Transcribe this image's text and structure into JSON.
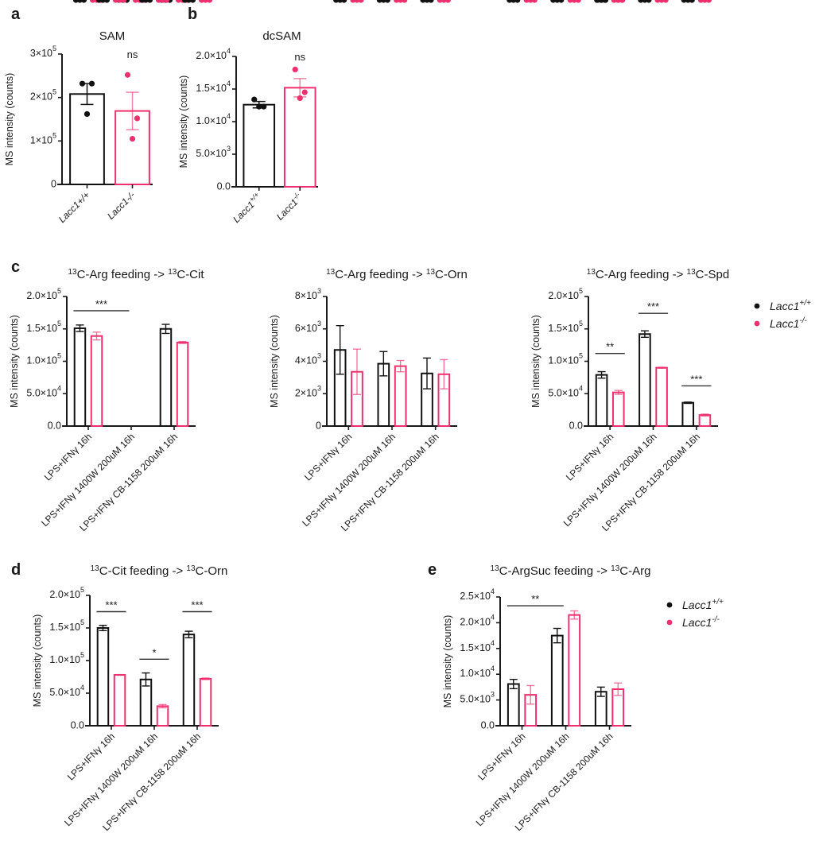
{
  "colors": {
    "wt": "#111111",
    "ko": "#f0306e"
  },
  "legend": {
    "items": [
      {
        "label": "Lacc1",
        "sup": "+/+",
        "color_key": "wt"
      },
      {
        "label": "Lacc1",
        "sup": "-/-",
        "color_key": "ko"
      }
    ]
  },
  "chart_data": [
    {
      "panel": "a",
      "type": "bar",
      "title": "SAM",
      "ylabel": "MS intensity (counts)",
      "ylim": [
        0,
        300000
      ],
      "yticks": [
        0,
        100000,
        200000,
        300000
      ],
      "yticklabels": [
        "0",
        "1×10^5",
        "2×10^5",
        "3×10^5"
      ],
      "categories": [
        "Lacc1+/+",
        "Lacc1-/-"
      ],
      "category_labels": [
        [
          "Lacc1",
          "+/+"
        ],
        [
          "Lacc1",
          "-/-"
        ]
      ],
      "layout": "single",
      "bars": [
        {
          "group": "wt",
          "mean": 208000,
          "sem": 24000,
          "points": [
            232000,
            232000,
            162000
          ]
        },
        {
          "group": "ko",
          "mean": 169000,
          "sem": 43000,
          "points": [
            252000,
            152000,
            105000
          ]
        }
      ],
      "sig": [
        {
          "text": "ns",
          "over": 1
        }
      ]
    },
    {
      "panel": "b",
      "type": "bar",
      "title": "dcSAM",
      "ylabel": "MS intensity (counts)",
      "ylim": [
        0,
        20000
      ],
      "yticks": [
        0,
        5000,
        10000,
        15000,
        20000
      ],
      "yticklabels": [
        "0.0",
        "5.0×10^3",
        "1.0×10^4",
        "1.5×10^4",
        "2.0×10^4"
      ],
      "categories": [
        "Lacc1+/+",
        "Lacc1-/-"
      ],
      "category_labels": [
        [
          "Lacc1",
          "+/+"
        ],
        [
          "Lacc1",
          "-/-"
        ]
      ],
      "layout": "single",
      "bars": [
        {
          "group": "wt",
          "mean": 12600,
          "sem": 500,
          "points": [
            13400,
            12300,
            12300
          ]
        },
        {
          "group": "ko",
          "mean": 15200,
          "sem": 1400,
          "points": [
            18000,
            14500,
            13600
          ]
        }
      ],
      "sig": [
        {
          "text": "ns",
          "over": 1
        }
      ]
    },
    {
      "panel": "c",
      "type": "bar",
      "title": "13C-Arg feeding -> 13C-Cit",
      "title_parts": [
        [
          "13",
          "C-Arg feeding -> "
        ],
        [
          "13",
          "C-Cit"
        ]
      ],
      "ylabel": "MS intensity (counts)",
      "ylim": [
        0,
        200000
      ],
      "yticks": [
        0,
        50000,
        100000,
        150000,
        200000
      ],
      "yticklabels": [
        "0.0",
        "5.0×10^4",
        "1.0×10^5",
        "1.5×10^5",
        "2.0×10^5"
      ],
      "categories": [
        "LPS+IFNγ 16h",
        "LPS+IFNγ 1400W 200uM 16h",
        "LPS+IFNγ CB-1158 200uM 16h"
      ],
      "layout": "grouped",
      "series": [
        {
          "name": "Lacc1+/+",
          "group": "wt",
          "means": [
            151000,
            0,
            150000
          ],
          "sems": [
            5000,
            0,
            7000
          ],
          "points": [
            [
              157000,
              155000,
              144000
            ],
            [
              0,
              0,
              0
            ],
            [
              163000,
              150000,
              143000
            ]
          ]
        },
        {
          "name": "Lacc1-/-",
          "group": "ko",
          "means": [
            139000,
            0,
            129000
          ],
          "sems": [
            6000,
            0,
            1500
          ],
          "points": [
            [
              152000,
              135000,
              135000
            ],
            [
              0,
              0,
              0
            ],
            [
              131000,
              129000,
              127000
            ]
          ]
        }
      ],
      "sig": [
        {
          "text": "***",
          "from": [
            0,
            "wt"
          ],
          "to": [
            1,
            "wt"
          ],
          "y": 178000
        }
      ]
    },
    {
      "panel": "c2",
      "type": "bar",
      "title": "13C-Arg feeding -> 13C-Orn",
      "title_parts": [
        [
          "13",
          "C-Arg feeding -> "
        ],
        [
          "13",
          "C-Orn"
        ]
      ],
      "ylabel": "MS intensity (counts)",
      "ylim": [
        0,
        8000
      ],
      "yticks": [
        0,
        2000,
        4000,
        6000,
        8000
      ],
      "yticklabels": [
        "0",
        "2×10^3",
        "4×10^3",
        "6×10^3",
        "8×10^3"
      ],
      "categories": [
        "LPS+IFNγ 16h",
        "LPS+IFNγ 1400W 200uM 16h",
        "LPS+IFNγ CB-1158 200uM 16h"
      ],
      "layout": "grouped",
      "series": [
        {
          "name": "Lacc1+/+",
          "group": "wt",
          "means": [
            4700,
            3850,
            3250
          ],
          "sems": [
            1500,
            750,
            950
          ],
          "points": [
            [
              6500,
              5850,
              1700
            ],
            [
              5350,
              3450,
              2700
            ],
            [
              4950,
              2950,
              1700
            ]
          ]
        },
        {
          "name": "Lacc1-/-",
          "group": "ko",
          "means": [
            3350,
            3700,
            3200
          ],
          "sems": [
            1400,
            350,
            900
          ],
          "points": [
            [
              6100,
              2200,
              1750
            ],
            [
              4200,
              4000,
              2900
            ],
            [
              4400,
              3650,
              1450
            ]
          ]
        }
      ],
      "sig": []
    },
    {
      "panel": "c3",
      "type": "bar",
      "title": "13C-Arg feeding -> 13C-Spd",
      "title_parts": [
        [
          "13",
          "C-Arg feeding -> "
        ],
        [
          "13",
          "C-Spd"
        ]
      ],
      "ylabel": "MS intensity (counts)",
      "ylim": [
        0,
        200000
      ],
      "yticks": [
        0,
        50000,
        100000,
        150000,
        200000
      ],
      "yticklabels": [
        "0.0",
        "5.0×10^4",
        "1.0×10^5",
        "1.5×10^5",
        "2.0×10^5"
      ],
      "categories": [
        "LPS+IFNγ 16h",
        "LPS+IFNγ 1400W 200uM 16h",
        "LPS+IFNγ CB-1158 200uM 16h"
      ],
      "layout": "grouped",
      "series": [
        {
          "name": "Lacc1+/+",
          "group": "wt",
          "means": [
            79000,
            142000,
            36000
          ],
          "sems": [
            5000,
            5000,
            1000
          ],
          "points": [
            [
              86000,
              83000,
              72000
            ],
            [
              150000,
              146000,
              134000
            ],
            [
              37000,
              36000,
              35000
            ]
          ]
        },
        {
          "name": "Lacc1-/-",
          "group": "ko",
          "means": [
            52000,
            90000,
            17000
          ],
          "sems": [
            3000,
            800,
            1500
          ],
          "points": [
            [
              58000,
              50000,
              47000
            ],
            [
              91000,
              90000,
              89000
            ],
            [
              19000,
              18000,
              14000
            ]
          ]
        }
      ],
      "sig": [
        {
          "text": "**",
          "from": [
            0,
            "wt"
          ],
          "to": [
            0,
            "ko"
          ],
          "y": 112000
        },
        {
          "text": "***",
          "from": [
            1,
            "wt"
          ],
          "to": [
            1,
            "ko"
          ],
          "y": 174000
        },
        {
          "text": "***",
          "from": [
            2,
            "wt"
          ],
          "to": [
            2,
            "ko"
          ],
          "y": 62000
        }
      ]
    },
    {
      "panel": "d",
      "type": "bar",
      "title": "13C-Cit feeding -> 13C-Orn",
      "title_parts": [
        [
          "13",
          "C-Cit feeding -> "
        ],
        [
          "13",
          "C-Orn"
        ]
      ],
      "ylabel": "MS intensity (counts)",
      "ylim": [
        0,
        200000
      ],
      "yticks": [
        0,
        50000,
        100000,
        150000,
        200000
      ],
      "yticklabels": [
        "0.0",
        "5.0×10^4",
        "1.0×10^5",
        "1.5×10^5",
        "2.0×10^5"
      ],
      "categories": [
        "LPS+IFNγ 16h",
        "LPS+IFNγ 1400W 200uM 16h",
        "LPS+IFNγ CB-1158 200uM 16h"
      ],
      "layout": "grouped",
      "series": [
        {
          "name": "Lacc1+/+",
          "group": "wt",
          "means": [
            150000,
            71000,
            140000
          ],
          "sems": [
            4000,
            10000,
            5000
          ],
          "points": [
            [
              157000,
              148000,
              147000
            ],
            [
              84000,
              83000,
              48000
            ],
            [
              148000,
              143000,
              132000
            ]
          ]
        },
        {
          "name": "Lacc1-/-",
          "group": "ko",
          "means": [
            78000,
            30000,
            72000
          ],
          "sems": [
            500,
            2500,
            1200
          ],
          "points": [
            [
              79000,
              78000,
              78000
            ],
            [
              33000,
              30000,
              27000
            ],
            [
              74000,
              73000,
              70000
            ]
          ]
        }
      ],
      "sig": [
        {
          "text": "***",
          "from": [
            0,
            "wt"
          ],
          "to": [
            0,
            "ko"
          ],
          "y": 175000
        },
        {
          "text": "*",
          "from": [
            1,
            "wt"
          ],
          "to": [
            1,
            "ko"
          ],
          "y": 102000
        },
        {
          "text": "***",
          "from": [
            2,
            "wt"
          ],
          "to": [
            2,
            "ko"
          ],
          "y": 175000
        }
      ]
    },
    {
      "panel": "e",
      "type": "bar",
      "title": "13C-ArgSuc feeding -> 13C-Arg",
      "title_parts": [
        [
          "13",
          "C-ArgSuc feeding -> "
        ],
        [
          "13",
          "C-Arg"
        ]
      ],
      "ylabel": "MS intensity (counts)",
      "ylim": [
        0,
        25000
      ],
      "yticks": [
        0,
        5000,
        10000,
        15000,
        20000,
        25000
      ],
      "yticklabels": [
        "0.0",
        "5.0×10^3",
        "1.0×10^4",
        "1.5×10^4",
        "2.0×10^4",
        "2.5×10^4"
      ],
      "categories": [
        "LPS+IFNγ 16h",
        "LPS+IFNγ 1400W 200uM 16h",
        "LPS+IFNγ CB-1158 200uM 16h"
      ],
      "layout": "grouped",
      "series": [
        {
          "name": "Lacc1+/+",
          "group": "wt",
          "means": [
            8100,
            17500,
            6600
          ],
          "sems": [
            900,
            1400,
            900
          ],
          "points": [
            [
              9600,
              7900,
              6900
            ],
            [
              19700,
              18000,
              14800
            ],
            [
              7900,
              6600,
              5300
            ]
          ]
        },
        {
          "name": "Lacc1-/-",
          "group": "ko",
          "means": [
            6000,
            21500,
            7100
          ],
          "sems": [
            1800,
            800,
            1200
          ],
          "points": [
            [
              8400,
              6600,
              2600
            ],
            [
              22400,
              22400,
              19600
            ],
            [
              8500,
              8300,
              4600
            ]
          ]
        }
      ],
      "sig": [
        {
          "text": "**",
          "from": [
            0,
            "wt"
          ],
          "to": [
            1,
            "wt"
          ],
          "y": 23300
        }
      ]
    }
  ]
}
